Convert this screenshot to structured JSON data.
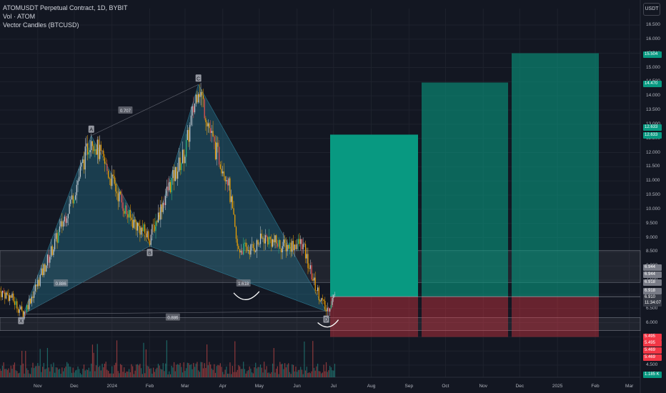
{
  "header": {
    "title": "ATOMUSDT Perpetual Contract, 1D, BYBIT",
    "indicator1": "Vol · ATOM",
    "indicator2": "Vector Candles (BTCUSD)",
    "currency": "USDT"
  },
  "y_axis_ticks": [
    "16.500",
    "16.000",
    "15.500",
    "15.000",
    "14.500",
    "14.000",
    "13.500",
    "13.000",
    "12.500",
    "12.000",
    "11.500",
    "11.000",
    "10.500",
    "10.000",
    "9.500",
    "9.000",
    "8.500",
    "8.000",
    "7.500",
    "7.000",
    "6.500",
    "6.000",
    "5.500",
    "5.000",
    "4.500"
  ],
  "x_axis_ticks": [
    "Nov",
    "Dec",
    "2024",
    "Feb",
    "Mar",
    "Apr",
    "May",
    "Jun",
    "Jul",
    "Aug",
    "Sep",
    "Oct",
    "Nov",
    "Dec",
    "2025",
    "Feb",
    "Mar"
  ],
  "price_tags": [
    {
      "label": "15.504",
      "color": "#089981"
    },
    {
      "label": "14.470",
      "color": "#089981"
    },
    {
      "label": "12.633",
      "color": "#089981"
    },
    {
      "label": "12.633",
      "color": "#089981"
    },
    {
      "label": "6.944",
      "color": "#787b86"
    },
    {
      "label": "6.944",
      "color": "#787b86"
    },
    {
      "label": "6.918",
      "color": "#787b86"
    },
    {
      "label": "6.918",
      "color": "#787b86"
    },
    {
      "label": "6.910",
      "color": "#363a45"
    },
    {
      "label": "11:34:07",
      "color": "#363a45"
    },
    {
      "label": "5.495",
      "color": "#f23645"
    },
    {
      "label": "5.495",
      "color": "#f23645"
    },
    {
      "label": "5.469",
      "color": "#f23645"
    },
    {
      "label": "5.469",
      "color": "#f23645"
    },
    {
      "label": "1.185 K",
      "color": "#089981"
    }
  ],
  "pattern_point_labels": [
    "X",
    "A",
    "B",
    "C",
    "D"
  ],
  "pattern_ratio_labels": [
    "0.707",
    "0.886",
    "1.618",
    "0.886"
  ],
  "chart_data": {
    "type": "candlestick",
    "symbol": "ATOMUSDT Perpetual Contract, 1D, BYBIT",
    "currency": "USDT",
    "ylim": [
      4.3,
      16.8
    ],
    "x_range": [
      "2023-10-01",
      "2025-03-10"
    ],
    "price_path": [
      {
        "date": "2023-10-01",
        "price": 7.1
      },
      {
        "date": "2023-10-10",
        "price": 6.9
      },
      {
        "date": "2023-10-20",
        "price": 6.3
      },
      {
        "date": "2023-11-01",
        "price": 7.4
      },
      {
        "date": "2023-11-15",
        "price": 8.8
      },
      {
        "date": "2023-12-01",
        "price": 10.6
      },
      {
        "date": "2023-12-15",
        "price": 12.6
      },
      {
        "date": "2024-01-01",
        "price": 11.0
      },
      {
        "date": "2024-01-15",
        "price": 9.7
      },
      {
        "date": "2024-02-01",
        "price": 9.0
      },
      {
        "date": "2024-02-15",
        "price": 10.6
      },
      {
        "date": "2024-03-01",
        "price": 12.0
      },
      {
        "date": "2024-03-12",
        "price": 14.4
      },
      {
        "date": "2024-03-25",
        "price": 12.2
      },
      {
        "date": "2024-04-05",
        "price": 11.1
      },
      {
        "date": "2024-04-13",
        "price": 8.6
      },
      {
        "date": "2024-04-25",
        "price": 8.6
      },
      {
        "date": "2024-05-05",
        "price": 9.0
      },
      {
        "date": "2024-05-20",
        "price": 8.7
      },
      {
        "date": "2024-06-05",
        "price": 8.8
      },
      {
        "date": "2024-06-15",
        "price": 7.4
      },
      {
        "date": "2024-06-25",
        "price": 6.4
      },
      {
        "date": "2024-07-01",
        "price": 6.91
      }
    ],
    "harmonic_pattern": {
      "points": [
        {
          "label": "X",
          "date": "2023-10-20",
          "price": 6.3
        },
        {
          "label": "A",
          "date": "2023-12-15",
          "price": 12.6
        },
        {
          "label": "B",
          "date": "2024-02-01",
          "price": 8.7
        },
        {
          "label": "C",
          "date": "2024-03-12",
          "price": 14.4
        },
        {
          "label": "D",
          "date": "2024-06-25",
          "price": 6.4
        }
      ],
      "ratios": [
        "0.707",
        "0.886",
        "1.618",
        "0.886"
      ]
    },
    "horizontal_zones": [
      {
        "from": 8.54,
        "to": 7.42
      },
      {
        "from": 6.18,
        "to": 5.72
      }
    ],
    "trade_plan": {
      "entry": 6.918,
      "stop": 5.495,
      "targets": [
        12.633,
        14.47,
        15.504
      ]
    },
    "last_price": 6.91,
    "countdown": "11:34:07",
    "last_volume": "1.185 K"
  }
}
